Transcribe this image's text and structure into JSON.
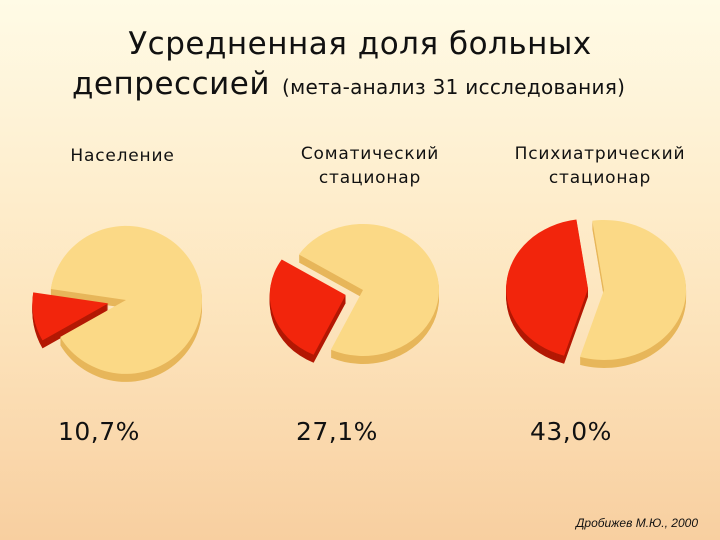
{
  "title": {
    "line1": "Усредненная доля больных",
    "line2": "депрессией",
    "subtitle": "(мета-анализ 31 исследования)"
  },
  "credit": "Дробижев М.Ю., 2000",
  "colors": {
    "rest": "#fbd986",
    "rest_edge": "#e7b65a",
    "share": "#f2250c",
    "share_edge": "#b31804"
  },
  "chart_data": [
    {
      "type": "pie",
      "category": "Население",
      "value_label": "10,7%",
      "slices": [
        {
          "value": 10.7,
          "color": "#f2250c"
        },
        {
          "value": 89.3,
          "color": "#fbd986"
        }
      ]
    },
    {
      "type": "pie",
      "category": "Соматический стационар",
      "category_lines": [
        "Соматический",
        "стационар"
      ],
      "value_label": "27,1%",
      "slices": [
        {
          "value": 27.1,
          "color": "#f2250c"
        },
        {
          "value": 72.9,
          "color": "#fbd986"
        }
      ]
    },
    {
      "type": "pie",
      "category": "Психиатрический стационар",
      "category_lines": [
        "Психиатрический",
        "стационар"
      ],
      "value_label": "43,0%",
      "slices": [
        {
          "value": 43.0,
          "color": "#f2250c"
        },
        {
          "value": 57.0,
          "color": "#fbd986"
        }
      ]
    }
  ]
}
